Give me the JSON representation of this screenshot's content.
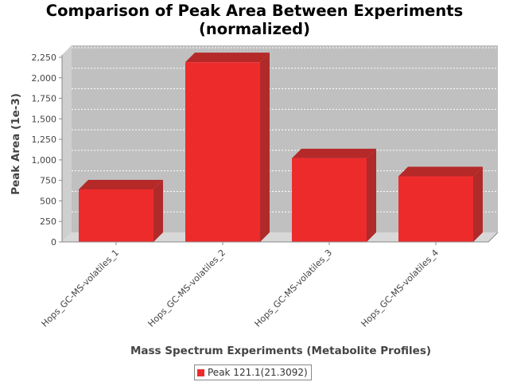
{
  "chart_data": {
    "type": "bar",
    "title_line1": "Comparison of Peak Area Between Experiments",
    "title_line2": "(normalized)",
    "xlabel": "Mass Spectrum Experiments (Metabolite Profiles)",
    "ylabel": "Peak Area (1e-3)",
    "categories": [
      "Hops_GC-MS-volatiles_1",
      "Hops_GC-MS-volatiles_2",
      "Hops_GC-MS-volatiles_3",
      "Hops_GC-MS-volatiles_4"
    ],
    "series": [
      {
        "name": "Peak 121.1(21.3092)",
        "values": [
          640,
          2190,
          1020,
          800
        ]
      }
    ],
    "ylim": [
      0,
      2250
    ],
    "yticks": [
      0,
      250,
      500,
      750,
      1000,
      1250,
      1500,
      1750,
      2000,
      2250
    ],
    "ytick_labels": [
      "0",
      "250",
      "500",
      "750",
      "1,000",
      "1,250",
      "1,500",
      "1,750",
      "2,000",
      "2,250"
    ],
    "grid": true,
    "legend_position": "bottom",
    "colors": {
      "bar_front": "#ee2b2b",
      "bar_side": "#b02a2a",
      "bar_top": "#b52929",
      "plot_back": "#c0c0c0",
      "plot_floor": "#d8d8d8",
      "grid": "#ffffff"
    }
  }
}
